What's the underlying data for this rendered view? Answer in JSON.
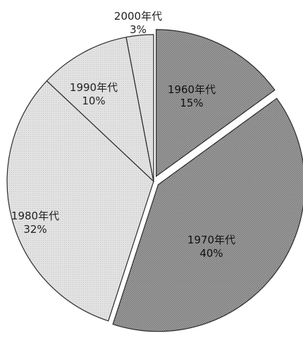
{
  "chart_data": {
    "type": "pie",
    "title": "",
    "direction": "clockwise",
    "start_angle_deg": 0,
    "slices": [
      {
        "label": "1960年代",
        "value": 15,
        "display": "15%",
        "color": "#8e8e8e",
        "exploded": true
      },
      {
        "label": "1970年代",
        "value": 40,
        "display": "40%",
        "color": "#9a9a9a",
        "exploded": true
      },
      {
        "label": "1980年代",
        "value": 32,
        "display": "32%",
        "color": "#dcdcdc",
        "exploded": false
      },
      {
        "label": "1990年代",
        "value": 10,
        "display": "10%",
        "color": "#dcdcdc",
        "exploded": false
      },
      {
        "label": "2000年代",
        "value": 3,
        "display": "3%",
        "color": "#dcdcdc",
        "exploded": false
      }
    ]
  }
}
